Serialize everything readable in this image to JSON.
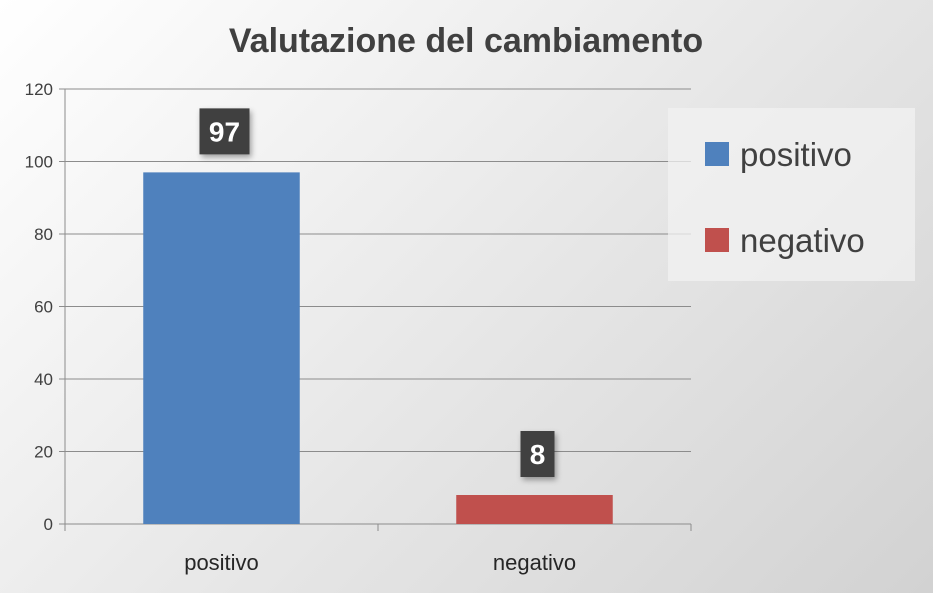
{
  "chart_data": {
    "type": "bar",
    "title": "Valutazione del cambiamento",
    "categories": [
      "positivo",
      "negativo"
    ],
    "values": [
      97,
      8
    ],
    "colors": [
      "#4f81bd",
      "#c0504d"
    ],
    "ylim": [
      0,
      120
    ],
    "yticks": [
      0,
      20,
      40,
      60,
      80,
      100,
      120
    ],
    "grid": true,
    "legend": {
      "position": "right",
      "entries": [
        "positivo",
        "negativo"
      ]
    },
    "data_labels": [
      "97",
      "8"
    ]
  }
}
